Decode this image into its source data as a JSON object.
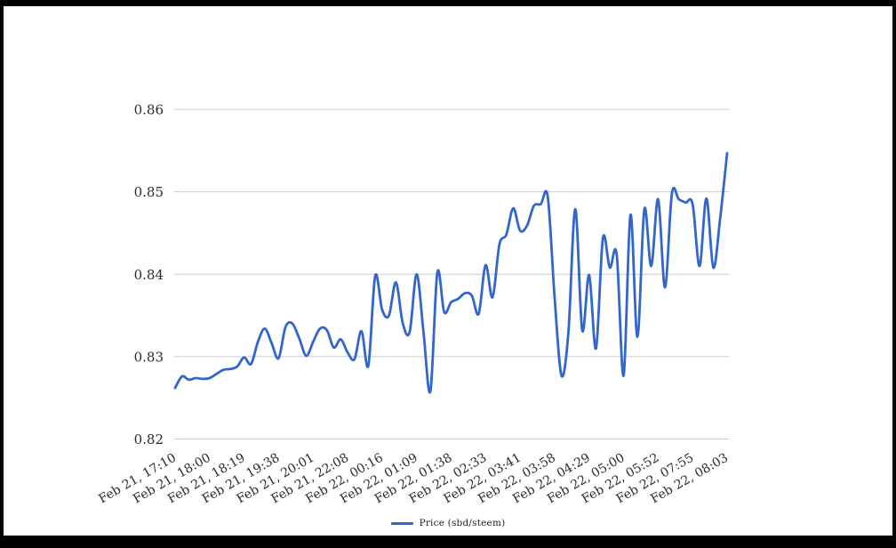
{
  "chart_data": {
    "type": "line",
    "title": "",
    "xlabel": "",
    "ylabel": "",
    "ylim": [
      0.82,
      0.86
    ],
    "grid": "horizontal",
    "legend_position": "bottom",
    "x_label_rotation": -30,
    "y_tick_labels": [
      "0.82",
      "0.83",
      "0.84",
      "0.85",
      "0.86"
    ],
    "x_tick_labels": [
      "Feb 21, 17:10",
      "Feb 21, 18:00",
      "Feb 21, 18:19",
      "Feb 21, 19:38",
      "Feb 21, 20:01",
      "Feb 21, 22:08",
      "Feb 22, 00:16",
      "Feb 22, 01:09",
      "Feb 22, 01:38",
      "Feb 22, 02:33",
      "Feb 22, 03:41",
      "Feb 22, 03:58",
      "Feb 22, 04:29",
      "Feb 22, 05:00",
      "Feb 22, 05:52",
      "Feb 22, 07:55",
      "Feb 22, 08:03"
    ],
    "label_every_n_points": 5,
    "series": [
      {
        "name": "Price (sbd/steem)",
        "color": "#3366cc",
        "values": [
          0.8262,
          0.8276,
          0.8272,
          0.8274,
          0.8273,
          0.8274,
          0.8279,
          0.8284,
          0.8285,
          0.8288,
          0.8299,
          0.8291,
          0.8318,
          0.8334,
          0.8316,
          0.8298,
          0.8336,
          0.834,
          0.8322,
          0.8301,
          0.8318,
          0.8334,
          0.8332,
          0.8311,
          0.8321,
          0.8305,
          0.8297,
          0.8331,
          0.8289,
          0.8398,
          0.8357,
          0.835,
          0.839,
          0.834,
          0.833,
          0.84,
          0.833,
          0.8258,
          0.8402,
          0.8354,
          0.8366,
          0.837,
          0.8377,
          0.8374,
          0.8352,
          0.8411,
          0.8372,
          0.8436,
          0.8448,
          0.848,
          0.8453,
          0.8459,
          0.8483,
          0.8485,
          0.8494,
          0.8372,
          0.8277,
          0.833,
          0.8479,
          0.8332,
          0.8399,
          0.831,
          0.8444,
          0.8408,
          0.8424,
          0.8277,
          0.8472,
          0.8324,
          0.8479,
          0.841,
          0.8491,
          0.8384,
          0.8498,
          0.8491,
          0.8487,
          0.8485,
          0.841,
          0.8492,
          0.8408,
          0.8468,
          0.8547
        ]
      }
    ]
  },
  "legend": {
    "label": "Price (sbd/steem)"
  },
  "colors": {
    "line": "#3366cc",
    "grid": "#cccccc",
    "axis_text": "#2b2b2b",
    "frame": "#000000",
    "background": "#ffffff"
  }
}
